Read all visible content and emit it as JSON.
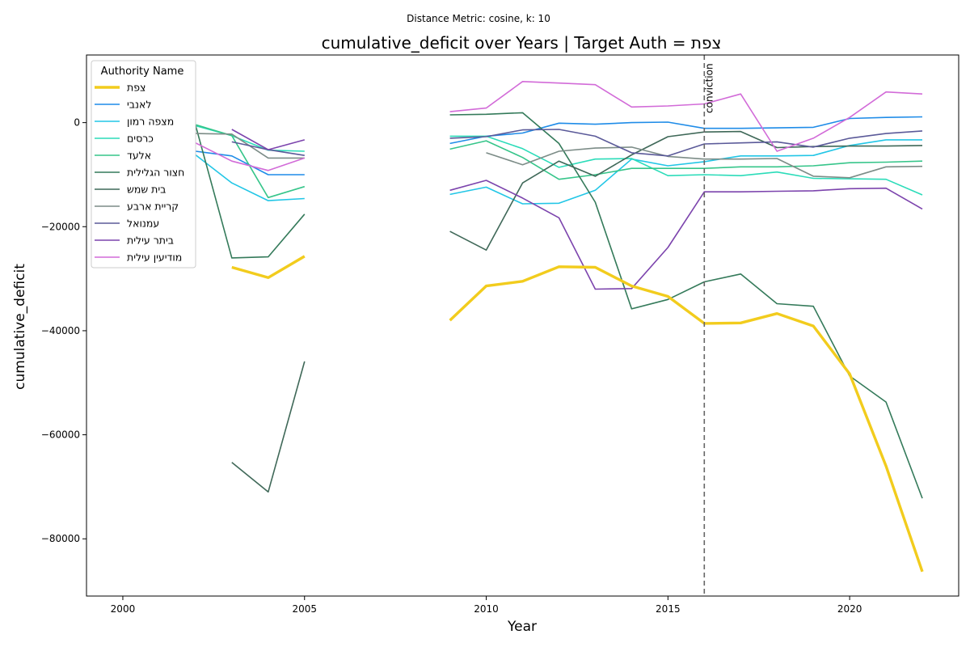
{
  "suptitle": "Distance Metric: cosine, k: 10",
  "chart_data": {
    "type": "line",
    "title": "cumulative_deficit over Years | Target Auth = צפת",
    "xlabel": "Year",
    "ylabel": "cumulative_deficit",
    "xlim": [
      1999,
      2023
    ],
    "ylim": [
      -91000,
      13000
    ],
    "xticks": [
      2000,
      2005,
      2010,
      2015,
      2020
    ],
    "yticks": [
      0,
      -20000,
      -40000,
      -60000,
      -80000
    ],
    "ytick_labels": [
      "0",
      "−20000",
      "−40000",
      "−60000",
      "−80000"
    ],
    "grid": false,
    "legend": {
      "title": "Authority Name",
      "placement": "top-left"
    },
    "vline": {
      "x": 2016,
      "label": "conviction",
      "color": "#666666"
    },
    "series": [
      {
        "name": "צפת",
        "color": "#f2cc1d",
        "target": true,
        "points": [
          [
            2003,
            -27800
          ],
          [
            2004,
            -29800
          ],
          [
            2005,
            -25700
          ],
          [
            2009,
            -38000
          ],
          [
            2010,
            -31400
          ],
          [
            2011,
            -30500
          ],
          [
            2012,
            -27700
          ],
          [
            2013,
            -27800
          ],
          [
            2014,
            -31400
          ],
          [
            2015,
            -33400
          ],
          [
            2016,
            -38600
          ],
          [
            2017,
            -38500
          ],
          [
            2018,
            -36700
          ],
          [
            2019,
            -39100
          ],
          [
            2020,
            -48300
          ],
          [
            2021,
            -66000
          ],
          [
            2022,
            -86300
          ]
        ]
      },
      {
        "name": "לאנבי",
        "color": "#1f8ce8",
        "points": [
          [
            2002,
            -5500
          ],
          [
            2003,
            -6400
          ],
          [
            2004,
            -10000
          ],
          [
            2005,
            -10000
          ],
          [
            2009,
            -4000
          ],
          [
            2010,
            -2600
          ],
          [
            2011,
            -2000
          ],
          [
            2012,
            -100
          ],
          [
            2013,
            -300
          ],
          [
            2014,
            0
          ],
          [
            2015,
            100
          ],
          [
            2016,
            -1100
          ],
          [
            2017,
            -1100
          ],
          [
            2018,
            -1000
          ],
          [
            2019,
            -900
          ],
          [
            2020,
            800
          ],
          [
            2021,
            1000
          ],
          [
            2022,
            1100
          ]
        ]
      },
      {
        "name": "מצפה רמון",
        "color": "#22c6e6",
        "points": [
          [
            2002,
            -6200
          ],
          [
            2003,
            -11600
          ],
          [
            2004,
            -15000
          ],
          [
            2005,
            -14600
          ],
          [
            2009,
            -13800
          ],
          [
            2010,
            -12400
          ],
          [
            2011,
            -15600
          ],
          [
            2012,
            -15500
          ],
          [
            2013,
            -13000
          ],
          [
            2014,
            -7000
          ],
          [
            2015,
            -8300
          ],
          [
            2016,
            -7500
          ],
          [
            2017,
            -6400
          ],
          [
            2018,
            -6400
          ],
          [
            2019,
            -6300
          ],
          [
            2020,
            -4400
          ],
          [
            2021,
            -3300
          ],
          [
            2022,
            -3300
          ]
        ]
      },
      {
        "name": "כרסים",
        "color": "#2bdcb9",
        "points": [
          [
            2002,
            -600
          ],
          [
            2003,
            -2500
          ],
          [
            2004,
            -5300
          ],
          [
            2005,
            -5500
          ],
          [
            2009,
            -2600
          ],
          [
            2010,
            -2600
          ],
          [
            2011,
            -5000
          ],
          [
            2012,
            -8600
          ],
          [
            2013,
            -7000
          ],
          [
            2014,
            -6900
          ],
          [
            2015,
            -10200
          ],
          [
            2016,
            -10000
          ],
          [
            2017,
            -10200
          ],
          [
            2018,
            -9500
          ],
          [
            2019,
            -10700
          ],
          [
            2020,
            -10800
          ],
          [
            2021,
            -10900
          ],
          [
            2022,
            -13900
          ]
        ]
      },
      {
        "name": "אלעד",
        "color": "#36c58a",
        "points": [
          [
            2002,
            -400
          ],
          [
            2003,
            -2500
          ],
          [
            2004,
            -14400
          ],
          [
            2005,
            -12300
          ],
          [
            2009,
            -5100
          ],
          [
            2010,
            -3500
          ],
          [
            2011,
            -6700
          ],
          [
            2012,
            -10900
          ],
          [
            2013,
            -10000
          ],
          [
            2014,
            -8800
          ],
          [
            2015,
            -8800
          ],
          [
            2016,
            -8800
          ],
          [
            2017,
            -8500
          ],
          [
            2018,
            -8500
          ],
          [
            2019,
            -8300
          ],
          [
            2020,
            -7700
          ],
          [
            2021,
            -7600
          ],
          [
            2022,
            -7400
          ]
        ]
      },
      {
        "name": "חצור הגלילית",
        "color": "#347a5a",
        "points": [
          [
            2002,
            -500
          ],
          [
            2003,
            -26000
          ],
          [
            2004,
            -25800
          ],
          [
            2005,
            -17600
          ],
          [
            2009,
            1500
          ],
          [
            2010,
            1600
          ],
          [
            2011,
            1900
          ],
          [
            2012,
            -4000
          ],
          [
            2013,
            -15300
          ],
          [
            2014,
            -35800
          ],
          [
            2015,
            -34000
          ],
          [
            2016,
            -30600
          ],
          [
            2017,
            -29100
          ],
          [
            2018,
            -34800
          ],
          [
            2019,
            -35300
          ],
          [
            2020,
            -48700
          ],
          [
            2021,
            -53700
          ],
          [
            2022,
            -72200
          ]
        ]
      },
      {
        "name": "בית שמש",
        "color": "#3f6858",
        "points": [
          [
            2003,
            -65300
          ],
          [
            2004,
            -71000
          ],
          [
            2005,
            -45900
          ],
          [
            2009,
            -20900
          ],
          [
            2010,
            -24500
          ],
          [
            2011,
            -11600
          ],
          [
            2012,
            -7400
          ],
          [
            2013,
            -10300
          ],
          [
            2014,
            -6200
          ],
          [
            2015,
            -2700
          ],
          [
            2016,
            -1800
          ],
          [
            2017,
            -1700
          ],
          [
            2018,
            -4800
          ],
          [
            2019,
            -4600
          ],
          [
            2020,
            -4500
          ],
          [
            2021,
            -4500
          ],
          [
            2022,
            -4400
          ]
        ]
      },
      {
        "name": "קריית ארבע",
        "color": "#7c8c87",
        "points": [
          [
            2002,
            -2100
          ],
          [
            2003,
            -2200
          ],
          [
            2004,
            -6800
          ],
          [
            2005,
            -6800
          ],
          [
            2010,
            -5800
          ],
          [
            2011,
            -8100
          ],
          [
            2012,
            -5500
          ],
          [
            2013,
            -4900
          ],
          [
            2014,
            -4700
          ],
          [
            2015,
            -6500
          ],
          [
            2016,
            -7000
          ],
          [
            2017,
            -7000
          ],
          [
            2018,
            -6900
          ],
          [
            2019,
            -10300
          ],
          [
            2020,
            -10600
          ],
          [
            2021,
            -8500
          ],
          [
            2022,
            -8400
          ]
        ]
      },
      {
        "name": "עמנואל",
        "color": "#5b5a99",
        "points": [
          [
            2003,
            -3700
          ],
          [
            2004,
            -5200
          ],
          [
            2005,
            -6300
          ],
          [
            2009,
            -3000
          ],
          [
            2010,
            -2700
          ],
          [
            2011,
            -1400
          ],
          [
            2012,
            -1300
          ],
          [
            2013,
            -2600
          ],
          [
            2014,
            -5800
          ],
          [
            2015,
            -6400
          ],
          [
            2016,
            -4100
          ],
          [
            2017,
            -3900
          ],
          [
            2018,
            -3700
          ],
          [
            2019,
            -4700
          ],
          [
            2020,
            -3000
          ],
          [
            2021,
            -2100
          ],
          [
            2022,
            -1600
          ]
        ]
      },
      {
        "name": "ביתר עילית",
        "color": "#7c44ad",
        "points": [
          [
            2003,
            -1300
          ],
          [
            2004,
            -5200
          ],
          [
            2005,
            -3300
          ],
          [
            2009,
            -13000
          ],
          [
            2010,
            -11100
          ],
          [
            2011,
            -14500
          ],
          [
            2012,
            -18300
          ],
          [
            2013,
            -32000
          ],
          [
            2014,
            -31900
          ],
          [
            2015,
            -24000
          ],
          [
            2016,
            -13300
          ],
          [
            2017,
            -13300
          ],
          [
            2018,
            -13200
          ],
          [
            2019,
            -13100
          ],
          [
            2020,
            -12700
          ],
          [
            2021,
            -12600
          ],
          [
            2022,
            -16600
          ]
        ]
      },
      {
        "name": "מודיעין עילית",
        "color": "#d26bd8",
        "points": [
          [
            2002,
            -3900
          ],
          [
            2003,
            -7400
          ],
          [
            2004,
            -9200
          ],
          [
            2005,
            -6800
          ],
          [
            2009,
            2100
          ],
          [
            2010,
            2800
          ],
          [
            2011,
            7900
          ],
          [
            2012,
            7600
          ],
          [
            2013,
            7300
          ],
          [
            2014,
            3000
          ],
          [
            2015,
            3200
          ],
          [
            2016,
            3600
          ],
          [
            2017,
            5500
          ],
          [
            2018,
            -5500
          ],
          [
            2019,
            -3000
          ],
          [
            2020,
            1000
          ],
          [
            2021,
            5900
          ],
          [
            2022,
            5500
          ]
        ]
      }
    ]
  }
}
